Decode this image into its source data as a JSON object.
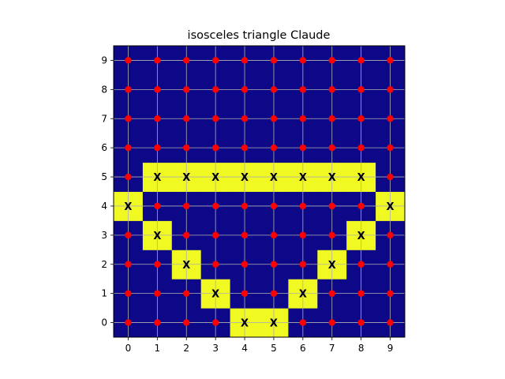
{
  "chart_data": {
    "type": "heatmap",
    "title": "isosceles triangle Claude",
    "xlabel": "",
    "ylabel": "",
    "x_ticks": [
      "0",
      "1",
      "2",
      "3",
      "4",
      "5",
      "6",
      "7",
      "8",
      "9"
    ],
    "y_ticks": [
      "0",
      "1",
      "2",
      "3",
      "4",
      "5",
      "6",
      "7",
      "8",
      "9"
    ],
    "xlim": [
      -0.5,
      9.5
    ],
    "ylim": [
      -0.5,
      9.5
    ],
    "grid": true,
    "colors": {
      "background_cell": "#0d0887",
      "highlight_cell": "#f0f921",
      "dot": "#ff0000",
      "grid_line": "#b0b0b0",
      "x_mark": "#000000"
    },
    "marker_symbol": "X",
    "highlighted_cells": [
      [
        4,
        0
      ],
      [
        5,
        0
      ],
      [
        3,
        1
      ],
      [
        6,
        1
      ],
      [
        2,
        2
      ],
      [
        7,
        2
      ],
      [
        1,
        3
      ],
      [
        8,
        3
      ],
      [
        0,
        4
      ],
      [
        9,
        4
      ],
      [
        1,
        5
      ],
      [
        2,
        5
      ],
      [
        3,
        5
      ],
      [
        4,
        5
      ],
      [
        5,
        5
      ],
      [
        6,
        5
      ],
      [
        7,
        5
      ],
      [
        8,
        5
      ]
    ]
  }
}
